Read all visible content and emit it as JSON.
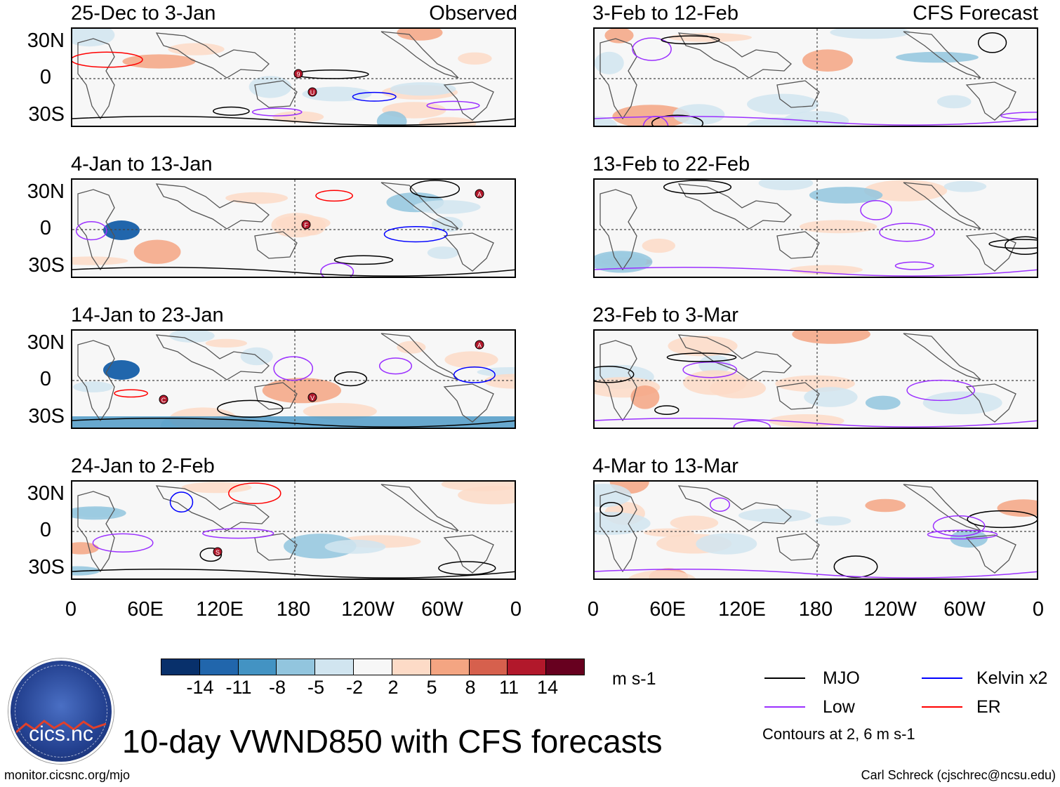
{
  "figure_title": "10-day VWND850 with CFS forecasts",
  "column_tags": {
    "left": "Observed",
    "right": "CFS Forecast"
  },
  "panels_left": [
    {
      "title": "25-Dec to 3-Jan",
      "markers": [
        "9",
        "U"
      ]
    },
    {
      "title": "4-Jan to 13-Jan",
      "markers": [
        "F",
        "A"
      ]
    },
    {
      "title": "14-Jan to 23-Jan",
      "markers": [
        "C",
        "V",
        "A"
      ]
    },
    {
      "title": "24-Jan to 2-Feb",
      "markers": [
        "S"
      ]
    }
  ],
  "panels_right": [
    {
      "title": "3-Feb to 12-Feb"
    },
    {
      "title": "13-Feb to 22-Feb"
    },
    {
      "title": "23-Feb to 3-Mar"
    },
    {
      "title": "4-Mar to 13-Mar"
    }
  ],
  "lat_labels": [
    "30N",
    "0",
    "30S"
  ],
  "lon_labels": [
    "0",
    "60E",
    "120E",
    "180",
    "120W",
    "60W",
    "0"
  ],
  "colorbar": {
    "colors": [
      "#08306b",
      "#2166ac",
      "#4393c3",
      "#92c5de",
      "#d1e5f0",
      "#f7f7f7",
      "#fddbc7",
      "#f4a582",
      "#d6604d",
      "#b2182b",
      "#67001f"
    ],
    "labels": [
      "-14",
      "-11",
      "-8",
      "-5",
      "-2",
      "2",
      "5",
      "8",
      "11",
      "14"
    ],
    "units": "m s-1"
  },
  "legend": {
    "items": [
      {
        "label": "MJO",
        "color": "#000000"
      },
      {
        "label": "Kelvin x2",
        "color": "#0000ff"
      },
      {
        "label": "Low",
        "color": "#9b30ff"
      },
      {
        "label": "ER",
        "color": "#ff0000"
      }
    ],
    "contours_note": "Contours at 2, 6 m s-1"
  },
  "logo_text": "cics.nc",
  "source_url": "monitor.cicsnc.org/mjo",
  "credit": "Carl Schreck (cjschrec@ncsu.edu)"
}
